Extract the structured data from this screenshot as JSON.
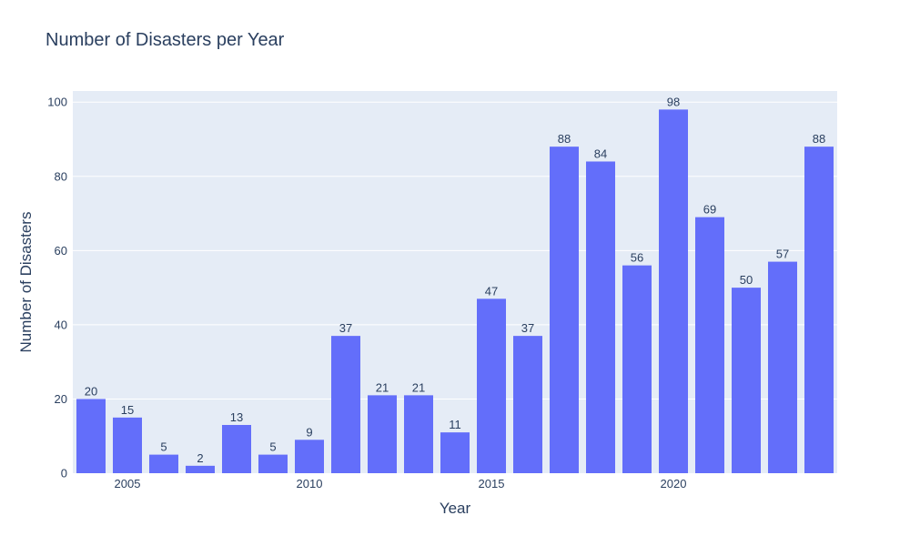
{
  "colors": {
    "plot_background": "#e5ecf6",
    "bar": "#636efa",
    "grid": "#ffffff",
    "text": "#2a3f5f"
  },
  "chart_data": {
    "type": "bar",
    "title": "Number of Disasters per Year",
    "xlabel": "Year",
    "ylabel": "Number of Disasters",
    "x": [
      2004,
      2005,
      2006,
      2007,
      2008,
      2009,
      2010,
      2011,
      2012,
      2013,
      2014,
      2015,
      2016,
      2017,
      2018,
      2019,
      2020,
      2021,
      2022,
      2023,
      2024
    ],
    "values": [
      20,
      15,
      5,
      2,
      13,
      5,
      9,
      37,
      21,
      21,
      11,
      47,
      37,
      88,
      84,
      56,
      98,
      69,
      50,
      57,
      88
    ],
    "ylim": [
      0,
      103
    ],
    "y_ticks": [
      0,
      20,
      40,
      60,
      80,
      100
    ],
    "x_ticks": [
      2005,
      2010,
      2015,
      2020
    ],
    "grid": true,
    "data_labels": true
  }
}
